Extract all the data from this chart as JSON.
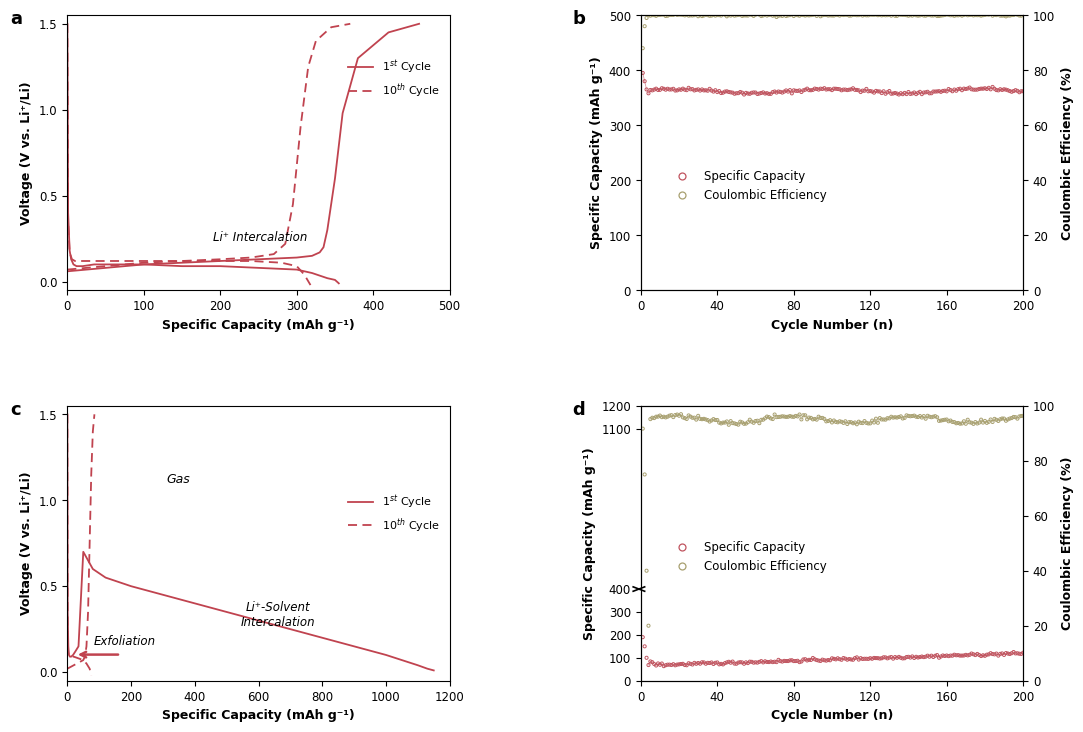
{
  "panel_a": {
    "label": "a",
    "xlabel": "Specific Capacity (mAh g⁻¹)",
    "ylabel": "Voltage (V vs. Li⁺/Li)",
    "xlim": [
      0,
      500
    ],
    "ylim": [
      -0.05,
      1.55
    ],
    "xticks": [
      0,
      100,
      200,
      300,
      400,
      500
    ],
    "yticks": [
      0.0,
      0.5,
      1.0,
      1.5
    ],
    "annotation": "Li⁺ Intercalation",
    "legend_1st": "1$^{st}$ Cycle",
    "legend_10th": "10$^{th}$ Cycle",
    "color": "#c0434f"
  },
  "panel_b": {
    "label": "b",
    "xlabel": "Cycle Number (n)",
    "ylabel": "Specific Capacity (mAh g⁻¹)",
    "ylabel_right": "Coulombic Efficiency (%)",
    "xlim": [
      0,
      200
    ],
    "ylim_left": [
      0,
      500
    ],
    "ylim_right": [
      0,
      100
    ],
    "xticks": [
      0,
      40,
      80,
      120,
      160,
      200
    ],
    "yticks_left": [
      0,
      100,
      200,
      300,
      400,
      500
    ],
    "yticks_right": [
      0,
      20,
      40,
      60,
      80,
      100
    ],
    "legend_cap": "Specific Capacity",
    "legend_ce": "Coulombic Efficiency",
    "color_cap": "#c0545f",
    "color_ce": "#a8a070"
  },
  "panel_c": {
    "label": "c",
    "xlabel": "Specific Capacity (mAh g⁻¹)",
    "ylabel": "Voltage (V vs. Li⁺/Li)",
    "xlim": [
      0,
      1200
    ],
    "ylim": [
      -0.05,
      1.55
    ],
    "xticks": [
      0,
      200,
      400,
      600,
      800,
      1000,
      1200
    ],
    "yticks": [
      0.0,
      0.5,
      1.0,
      1.5
    ],
    "annotation1": "Gas",
    "annotation2": "Exfoliation",
    "annotation3": "Li⁺-Solvent\nIntercalation",
    "legend_1st": "1$^{st}$ Cycle",
    "legend_10th": "10$^{th}$ Cycle",
    "color": "#c0434f"
  },
  "panel_d": {
    "label": "d",
    "xlabel": "Cycle Number (n)",
    "ylabel": "Specific Capacity (mAh g⁻¹)",
    "ylabel_right": "Coulombic Efficiency (%)",
    "xlim": [
      0,
      200
    ],
    "ylim_left": [
      0,
      1200
    ],
    "ylim_right": [
      0,
      100
    ],
    "xticks": [
      0,
      40,
      80,
      120,
      160,
      200
    ],
    "yticks_left": [
      0,
      100,
      200,
      300,
      400,
      1100,
      1200
    ],
    "yticks_right": [
      0,
      20,
      40,
      60,
      80,
      100
    ],
    "legend_cap": "Specific Capacity",
    "legend_ce": "Coulombic Efficiency",
    "color_cap": "#c0545f",
    "color_ce": "#a8a070"
  },
  "bg": "#ffffff",
  "fig_fc": "#ffffff"
}
